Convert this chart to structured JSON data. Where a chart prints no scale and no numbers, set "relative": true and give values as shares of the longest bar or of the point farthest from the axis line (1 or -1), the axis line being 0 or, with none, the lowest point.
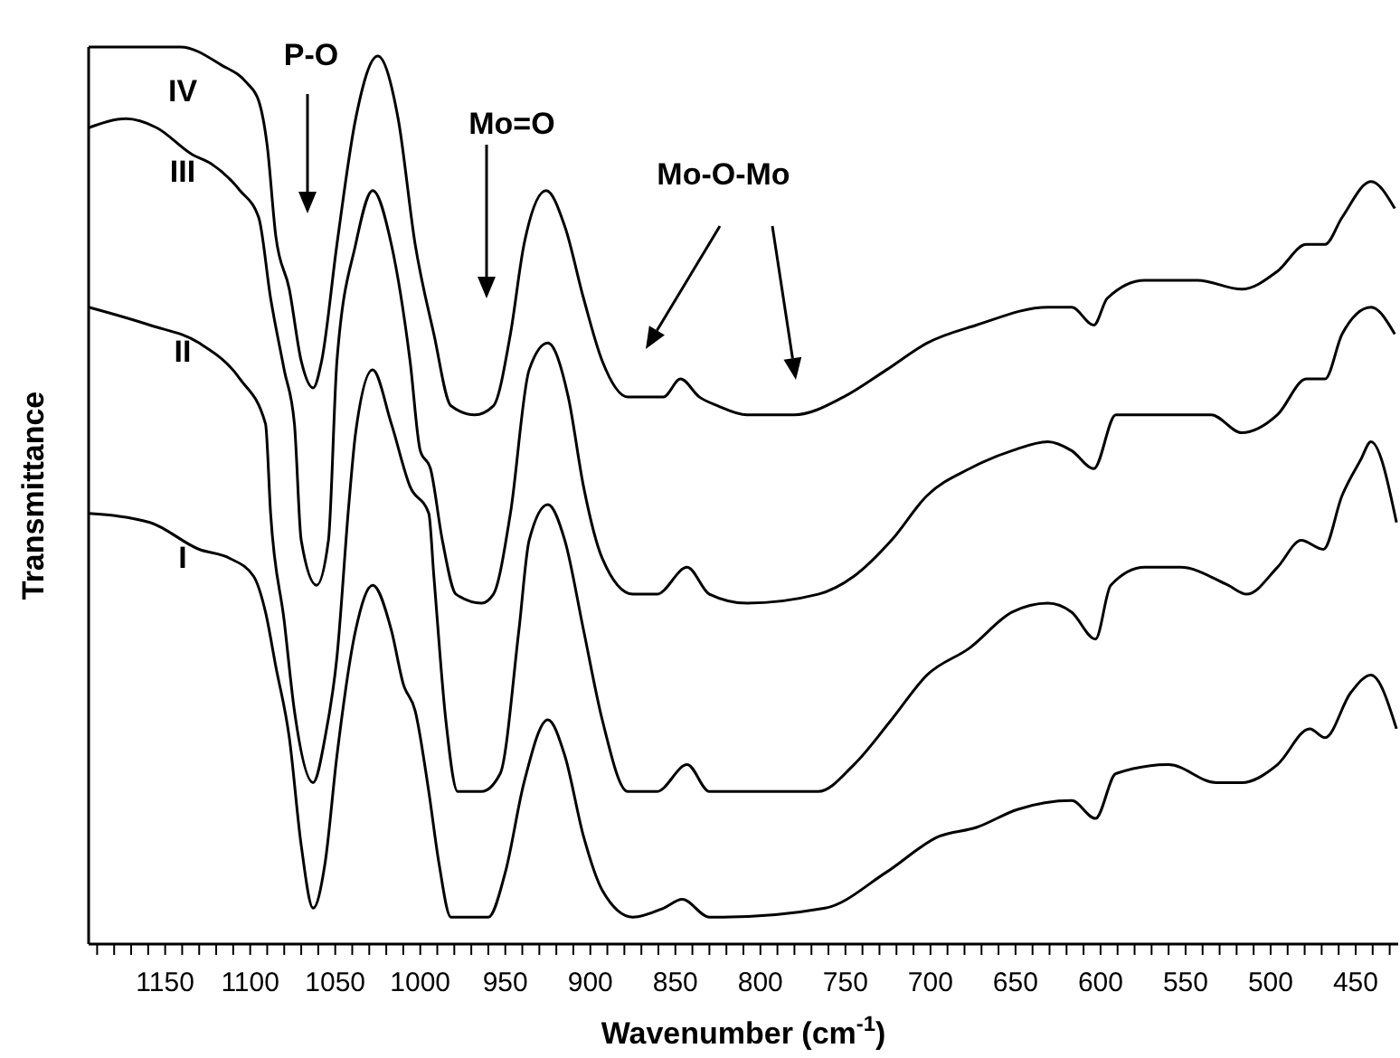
{
  "chart_data": {
    "type": "line",
    "relative": true,
    "xlabel": "Wavenumber (cm$^{-1}$)",
    "ylabel": "Transmittance",
    "xlim": [
      1195,
      425
    ],
    "xticks": [
      {
        "value": 1190,
        "label": null
      },
      {
        "value": 1180,
        "label": null
      },
      {
        "value": 1170,
        "label": null
      },
      {
        "value": 1160,
        "label": null
      },
      1150,
      {
        "value": 1140,
        "label": null
      },
      {
        "value": 1130,
        "label": null
      },
      {
        "value": 1120,
        "label": null
      },
      {
        "value": 1110,
        "label": null
      },
      1100,
      {
        "value": 1090,
        "label": null
      },
      {
        "value": 1080,
        "label": null
      },
      {
        "value": 1070,
        "label": null
      },
      {
        "value": 1060,
        "label": null
      },
      1050,
      {
        "value": 1040,
        "label": null
      },
      {
        "value": 1030,
        "label": null
      },
      {
        "value": 1020,
        "label": null
      },
      {
        "value": 1010,
        "label": null
      },
      1000,
      {
        "value": 990,
        "label": null
      },
      {
        "value": 980,
        "label": null
      },
      {
        "value": 970,
        "label": null
      },
      {
        "value": 960,
        "label": null
      },
      950,
      {
        "value": 940,
        "label": null
      },
      {
        "value": 930,
        "label": null
      },
      {
        "value": 920,
        "label": null
      },
      {
        "value": 910,
        "label": null
      },
      900,
      {
        "value": 890,
        "label": null
      },
      {
        "value": 880,
        "label": null
      },
      {
        "value": 870,
        "label": null
      },
      {
        "value": 860,
        "label": null
      },
      850,
      {
        "value": 840,
        "label": null
      },
      {
        "value": 830,
        "label": null
      },
      {
        "value": 820,
        "label": null
      },
      {
        "value": 810,
        "label": null
      },
      800,
      {
        "value": 790,
        "label": null
      },
      {
        "value": 780,
        "label": null
      },
      {
        "value": 770,
        "label": null
      },
      {
        "value": 760,
        "label": null
      },
      750,
      {
        "value": 740,
        "label": null
      },
      {
        "value": 730,
        "label": null
      },
      {
        "value": 720,
        "label": null
      },
      {
        "value": 710,
        "label": null
      },
      700,
      {
        "value": 690,
        "label": null
      },
      {
        "value": 680,
        "label": null
      },
      {
        "value": 670,
        "label": null
      },
      {
        "value": 660,
        "label": null
      },
      650,
      {
        "value": 640,
        "label": null
      },
      {
        "value": 630,
        "label": null
      },
      {
        "value": 620,
        "label": null
      },
      {
        "value": 610,
        "label": null
      },
      600,
      {
        "value": 590,
        "label": null
      },
      {
        "value": 580,
        "label": null
      },
      {
        "value": 570,
        "label": null
      },
      {
        "value": 560,
        "label": null
      },
      550,
      {
        "value": 540,
        "label": null
      },
      {
        "value": 530,
        "label": null
      },
      {
        "value": 520,
        "label": null
      },
      {
        "value": 510,
        "label": null
      },
      500,
      {
        "value": 490,
        "label": null
      },
      {
        "value": 480,
        "label": null
      },
      {
        "value": 470,
        "label": null
      },
      {
        "value": 460,
        "label": null
      },
      450,
      {
        "value": 440,
        "label": null
      },
      {
        "value": 430,
        "label": null
      }
    ],
    "grid": false,
    "legend": false,
    "marker": "none",
    "line_style": "solid",
    "series": [
      {
        "name": "IV",
        "color": "#000000",
        "x": [
          1195,
          1141,
          1117,
          1102,
          1095,
          1090,
          1085,
          1077,
          1070,
          1063,
          1058,
          1049,
          1038,
          1025,
          1013,
          1003,
          992,
          982,
          968,
          957,
          947,
          939,
          926,
          915,
          904,
          893,
          878,
          868,
          857,
          847,
          836,
          825,
          808,
          780,
          751,
          726,
          702,
          673,
          631,
          617,
          604,
          596,
          574,
          543,
          517,
          496,
          479,
          468,
          458,
          441,
          427
        ],
        "values": [
          1.0,
          1.0,
          0.98,
          0.96,
          0.94,
          0.89,
          0.79,
          0.73,
          0.65,
          0.62,
          0.65,
          0.78,
          0.92,
          0.99,
          0.92,
          0.78,
          0.68,
          0.6,
          0.59,
          0.6,
          0.68,
          0.78,
          0.84,
          0.8,
          0.72,
          0.65,
          0.61,
          0.61,
          0.61,
          0.63,
          0.61,
          0.6,
          0.59,
          0.59,
          0.61,
          0.64,
          0.67,
          0.69,
          0.71,
          0.71,
          0.69,
          0.72,
          0.74,
          0.74,
          0.73,
          0.75,
          0.78,
          0.78,
          0.81,
          0.85,
          0.82
        ]
      },
      {
        "name": "III",
        "color": "#000000",
        "x": [
          1195,
          1173,
          1155,
          1134,
          1123,
          1106,
          1095,
          1088,
          1080,
          1074,
          1070,
          1061,
          1054,
          1049,
          1038,
          1028,
          1017,
          1006,
          1000,
          994,
          987,
          979,
          964,
          957,
          947,
          936,
          925,
          913,
          904,
          893,
          875,
          861,
          843,
          830,
          808,
          766,
          745,
          723,
          702,
          677,
          652,
          631,
          617,
          604,
          591,
          560,
          535,
          517,
          496,
          479,
          468,
          458,
          441,
          427
        ],
        "values": [
          0.91,
          0.92,
          0.91,
          0.88,
          0.87,
          0.84,
          0.81,
          0.72,
          0.64,
          0.58,
          0.45,
          0.4,
          0.45,
          0.65,
          0.78,
          0.84,
          0.78,
          0.65,
          0.55,
          0.53,
          0.45,
          0.39,
          0.38,
          0.39,
          0.48,
          0.64,
          0.67,
          0.61,
          0.51,
          0.43,
          0.39,
          0.39,
          0.42,
          0.39,
          0.38,
          0.39,
          0.41,
          0.45,
          0.5,
          0.53,
          0.55,
          0.56,
          0.55,
          0.53,
          0.59,
          0.59,
          0.59,
          0.57,
          0.59,
          0.63,
          0.63,
          0.68,
          0.71,
          0.68
        ]
      },
      {
        "name": "II",
        "color": "#000000",
        "x": [
          1195,
          1159,
          1130,
          1106,
          1091,
          1088,
          1080,
          1074,
          1063,
          1056,
          1049,
          1042,
          1038,
          1028,
          1017,
          1006,
          995,
          992,
          985,
          978,
          964,
          953,
          942,
          936,
          925,
          915,
          904,
          893,
          878,
          861,
          843,
          830,
          808,
          766,
          745,
          723,
          702,
          677,
          652,
          631,
          617,
          603,
          594,
          574,
          553,
          525,
          514,
          496,
          482,
          469,
          458,
          447,
          441,
          426
        ],
        "values": [
          0.71,
          0.69,
          0.67,
          0.63,
          0.58,
          0.48,
          0.36,
          0.26,
          0.18,
          0.23,
          0.32,
          0.49,
          0.57,
          0.64,
          0.58,
          0.51,
          0.48,
          0.41,
          0.25,
          0.17,
          0.17,
          0.19,
          0.35,
          0.45,
          0.49,
          0.45,
          0.35,
          0.25,
          0.17,
          0.17,
          0.2,
          0.17,
          0.17,
          0.17,
          0.2,
          0.25,
          0.3,
          0.33,
          0.37,
          0.38,
          0.37,
          0.34,
          0.4,
          0.42,
          0.42,
          0.4,
          0.39,
          0.42,
          0.45,
          0.44,
          0.5,
          0.54,
          0.56,
          0.47
        ]
      },
      {
        "name": "I",
        "color": "#000000",
        "x": [
          1195,
          1159,
          1130,
          1112,
          1098,
          1091,
          1085,
          1077,
          1070,
          1063,
          1056,
          1049,
          1038,
          1028,
          1017,
          1010,
          1003,
          995,
          989,
          982,
          960,
          950,
          939,
          925,
          915,
          904,
          893,
          875,
          857,
          846,
          830,
          822,
          762,
          726,
          695,
          673,
          649,
          617,
          603,
          591,
          560,
          532,
          517,
          496,
          477,
          468,
          453,
          441,
          426
        ],
        "values": [
          0.48,
          0.47,
          0.44,
          0.43,
          0.41,
          0.37,
          0.31,
          0.23,
          0.11,
          0.04,
          0.09,
          0.21,
          0.35,
          0.4,
          0.35,
          0.29,
          0.26,
          0.17,
          0.09,
          0.03,
          0.03,
          0.08,
          0.18,
          0.25,
          0.21,
          0.12,
          0.06,
          0.03,
          0.04,
          0.05,
          0.03,
          0.03,
          0.04,
          0.08,
          0.12,
          0.13,
          0.15,
          0.16,
          0.14,
          0.19,
          0.2,
          0.18,
          0.18,
          0.2,
          0.24,
          0.23,
          0.28,
          0.3,
          0.24
        ]
      }
    ],
    "annotations": [
      "P-O",
      "Mo=O",
      "Mo-O-Mo"
    ]
  }
}
